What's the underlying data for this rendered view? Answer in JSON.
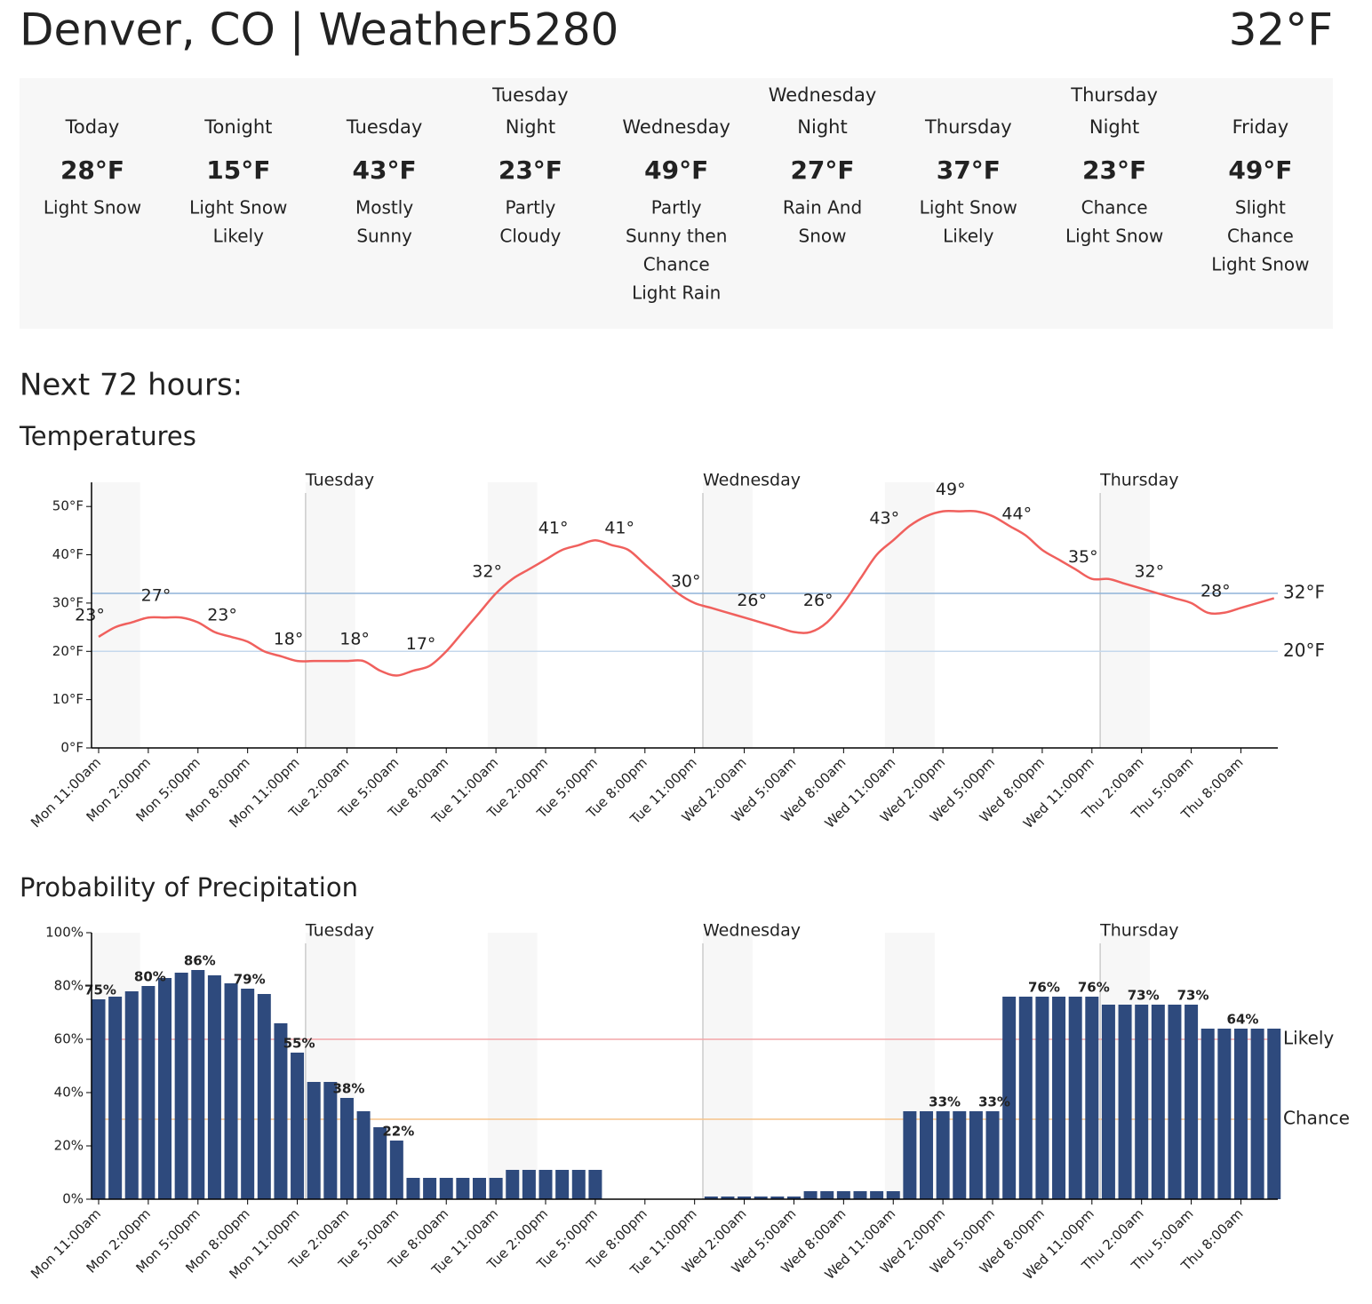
{
  "header": {
    "title": "Denver, CO | Weather5280",
    "current_temp": "32°F"
  },
  "forecast": {
    "periods": [
      {
        "name": [
          "Today"
        ],
        "temp": "28°F",
        "description": [
          "Light Snow"
        ]
      },
      {
        "name": [
          "Tonight"
        ],
        "temp": "15°F",
        "description": [
          "Light Snow",
          "Likely"
        ]
      },
      {
        "name": [
          "Tuesday"
        ],
        "temp": "43°F",
        "description": [
          "Mostly",
          "Sunny"
        ]
      },
      {
        "name": [
          "Tuesday",
          "Night"
        ],
        "temp": "23°F",
        "description": [
          "Partly",
          "Cloudy"
        ]
      },
      {
        "name": [
          "Wednesday"
        ],
        "temp": "49°F",
        "description": [
          "Partly",
          "Sunny then",
          "Chance",
          "Light Rain"
        ]
      },
      {
        "name": [
          "Wednesday",
          "Night"
        ],
        "temp": "27°F",
        "description": [
          "Rain And",
          "Snow"
        ]
      },
      {
        "name": [
          "Thursday"
        ],
        "temp": "37°F",
        "description": [
          "Light Snow",
          "Likely"
        ]
      },
      {
        "name": [
          "Thursday",
          "Night"
        ],
        "temp": "23°F",
        "description": [
          "Chance",
          "Light Snow"
        ]
      },
      {
        "name": [
          "Friday"
        ],
        "temp": "49°F",
        "description": [
          "Slight",
          "Chance",
          "Light Snow"
        ]
      }
    ]
  },
  "section_title": "Next 72 hours:",
  "chart_data": [
    {
      "type": "line",
      "title": "Temperatures",
      "color": "#f0605d",
      "categories": [
        "Mon 11:00am",
        null,
        null,
        "Mon 2:00pm",
        null,
        null,
        "Mon 5:00pm",
        null,
        null,
        "Mon 8:00pm",
        null,
        null,
        "Mon 11:00pm",
        null,
        null,
        "Tue 2:00am",
        null,
        null,
        "Tue 5:00am",
        null,
        null,
        "Tue 8:00am",
        null,
        null,
        "Tue 11:00am",
        null,
        null,
        "Tue 2:00pm",
        null,
        null,
        "Tue 5:00pm",
        null,
        null,
        "Tue 8:00pm",
        null,
        null,
        "Tue 11:00pm",
        null,
        null,
        "Wed 2:00am",
        null,
        null,
        "Wed 5:00am",
        null,
        null,
        "Wed 8:00am",
        null,
        null,
        "Wed 11:00am",
        null,
        null,
        "Wed 2:00pm",
        null,
        null,
        "Wed 5:00pm",
        null,
        null,
        "Wed 8:00pm",
        null,
        null,
        "Wed 11:00pm",
        null,
        null,
        "Thu 2:00am",
        null,
        null,
        "Thu 5:00am",
        null,
        null,
        "Thu 8:00am",
        null,
        null
      ],
      "values": [
        23,
        25,
        26,
        27,
        27,
        27,
        26,
        24,
        23,
        22,
        20,
        19,
        18,
        18,
        18,
        18,
        18,
        16,
        15,
        16,
        17,
        20,
        24,
        28,
        32,
        35,
        37,
        39,
        41,
        42,
        43,
        42,
        41,
        38,
        35,
        32,
        30,
        29,
        28,
        27,
        26,
        25,
        24,
        24,
        26,
        30,
        35,
        40,
        43,
        46,
        48,
        49,
        49,
        49,
        48,
        46,
        44,
        41,
        39,
        37,
        35,
        35,
        34,
        33,
        32,
        31,
        30,
        28,
        28,
        29,
        30,
        31
      ],
      "value_labels": [
        "23°",
        null,
        null,
        null,
        "27°",
        null,
        null,
        null,
        "23°",
        null,
        null,
        null,
        "18°",
        null,
        null,
        null,
        "18°",
        null,
        null,
        null,
        "17°",
        null,
        null,
        null,
        "32°",
        null,
        null,
        null,
        "41°",
        null,
        null,
        null,
        "41°",
        null,
        null,
        null,
        "30°",
        null,
        null,
        null,
        "26°",
        null,
        null,
        null,
        "26°",
        null,
        null,
        null,
        "43°",
        null,
        null,
        null,
        "49°",
        null,
        null,
        null,
        "44°",
        null,
        null,
        null,
        "35°",
        null,
        null,
        null,
        "32°",
        null,
        null,
        null,
        "28°",
        null,
        null,
        null
      ],
      "ylim": [
        0,
        55
      ],
      "yticks": [
        {
          "value": 0,
          "label": "0°F"
        },
        {
          "value": 10,
          "label": "10°F"
        },
        {
          "value": 20,
          "label": "20°F"
        },
        {
          "value": 30,
          "label": "30°F"
        },
        {
          "value": 40,
          "label": "40°F"
        },
        {
          "value": 50,
          "label": "50°F"
        }
      ],
      "reference_lines": [
        {
          "value": 32,
          "label": "32°F",
          "color": "#8fb3d9",
          "label_color": "#1e3350"
        },
        {
          "value": 20,
          "label": "20°F",
          "color": "#c5d8ec",
          "label_color": "#1e3350"
        }
      ],
      "day_labels": [
        "Tuesday",
        "Wednesday",
        "Thursday"
      ]
    },
    {
      "type": "bar",
      "title": "Probability of Precipitation",
      "color": "#2e4a7d",
      "categories": [
        "Mon 11:00am",
        null,
        null,
        "Mon 2:00pm",
        null,
        null,
        "Mon 5:00pm",
        null,
        null,
        "Mon 8:00pm",
        null,
        null,
        "Mon 11:00pm",
        null,
        null,
        "Tue 2:00am",
        null,
        null,
        "Tue 5:00am",
        null,
        null,
        "Tue 8:00am",
        null,
        null,
        "Tue 11:00am",
        null,
        null,
        "Tue 2:00pm",
        null,
        null,
        "Tue 5:00pm",
        null,
        null,
        "Tue 8:00pm",
        null,
        null,
        "Tue 11:00pm",
        null,
        null,
        "Wed 2:00am",
        null,
        null,
        "Wed 5:00am",
        null,
        null,
        "Wed 8:00am",
        null,
        null,
        "Wed 11:00am",
        null,
        null,
        "Wed 2:00pm",
        null,
        null,
        "Wed 5:00pm",
        null,
        null,
        "Wed 8:00pm",
        null,
        null,
        "Wed 11:00pm",
        null,
        null,
        "Thu 2:00am",
        null,
        null,
        "Thu 5:00am",
        null,
        null,
        "Thu 8:00am",
        null,
        null
      ],
      "values": [
        75,
        76,
        78,
        80,
        83,
        85,
        86,
        84,
        81,
        79,
        77,
        66,
        55,
        44,
        44,
        38,
        33,
        27,
        22,
        8,
        8,
        8,
        8,
        8,
        8,
        11,
        11,
        11,
        11,
        11,
        11,
        0,
        0,
        0,
        0,
        0,
        0,
        1,
        1,
        1,
        1,
        1,
        1,
        3,
        3,
        3,
        3,
        3,
        3,
        33,
        33,
        33,
        33,
        33,
        33,
        76,
        76,
        76,
        76,
        76,
        76,
        73,
        73,
        73,
        73,
        73,
        73,
        64,
        64,
        64,
        64,
        64
      ],
      "value_labels": [
        "75%",
        null,
        null,
        "80%",
        null,
        null,
        "86%",
        null,
        null,
        "79%",
        null,
        null,
        "55%",
        null,
        null,
        "38%",
        null,
        null,
        "22%",
        null,
        null,
        null,
        null,
        null,
        null,
        null,
        null,
        null,
        null,
        null,
        null,
        null,
        null,
        null,
        null,
        null,
        null,
        null,
        null,
        null,
        null,
        null,
        null,
        null,
        null,
        null,
        null,
        null,
        null,
        null,
        null,
        "33%",
        null,
        null,
        "33%",
        null,
        null,
        "76%",
        null,
        null,
        "76%",
        null,
        null,
        "73%",
        null,
        null,
        "73%",
        null,
        null,
        "64%",
        null,
        null
      ],
      "ylim": [
        0,
        100
      ],
      "yticks": [
        {
          "value": 0,
          "label": "0%"
        },
        {
          "value": 20,
          "label": "20%"
        },
        {
          "value": 40,
          "label": "40%"
        },
        {
          "value": 60,
          "label": "60%"
        },
        {
          "value": 80,
          "label": "80%"
        },
        {
          "value": 100,
          "label": "100%"
        }
      ],
      "reference_lines": [
        {
          "value": 60,
          "label": "Likely",
          "color": "#f4a5a8",
          "label_color": "#5a1a1a"
        },
        {
          "value": 30,
          "label": "Chance",
          "color": "#f6c48c",
          "label_color": "#4a3000"
        }
      ],
      "day_labels": [
        "Tuesday",
        "Wednesday",
        "Thursday"
      ]
    }
  ]
}
